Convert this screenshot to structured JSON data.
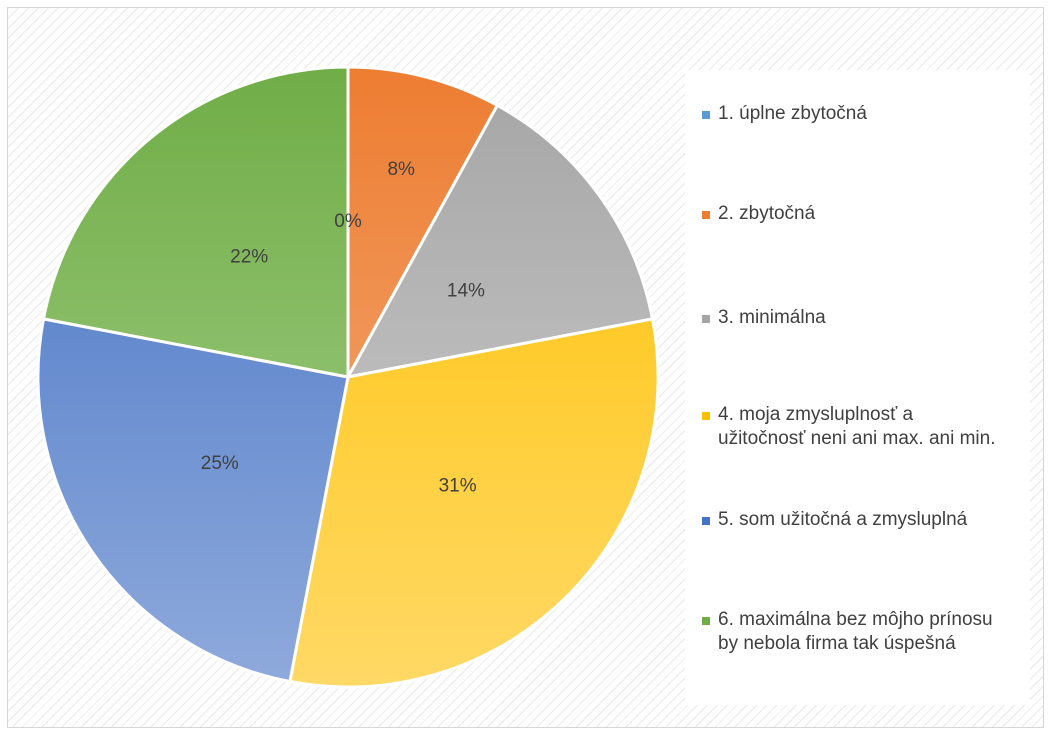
{
  "chart_data": {
    "type": "pie",
    "title": "",
    "categories": [
      "1. úplne zbytočná",
      "2. zbytočná",
      "3. minimálna",
      "4. moja zmysluplnosť a\nužitočnosť neni ani max. ani min.",
      "5. som užitočná a zmysluplná",
      "6. maximálna bez môjho prínosu\nby nebola firma tak úspešná"
    ],
    "values": [
      0,
      8,
      14,
      31,
      25,
      22
    ],
    "data_labels": [
      "0%",
      "8%",
      "14%",
      "31%",
      "25%",
      "22%"
    ],
    "colors": [
      {
        "base": "#5b9bd5",
        "light": "#a3c4e8"
      },
      {
        "base": "#ed7d31",
        "light": "#f4b183"
      },
      {
        "base": "#a5a5a5",
        "light": "#d1d1d1"
      },
      {
        "base": "#ffc000",
        "light": "#ffd966"
      },
      {
        "base": "#4472c4",
        "light": "#8faadc"
      },
      {
        "base": "#70ad47",
        "light": "#a9d18e"
      }
    ],
    "legend_position": "right",
    "start_angle": "12 o'clock",
    "direction": "clockwise"
  }
}
